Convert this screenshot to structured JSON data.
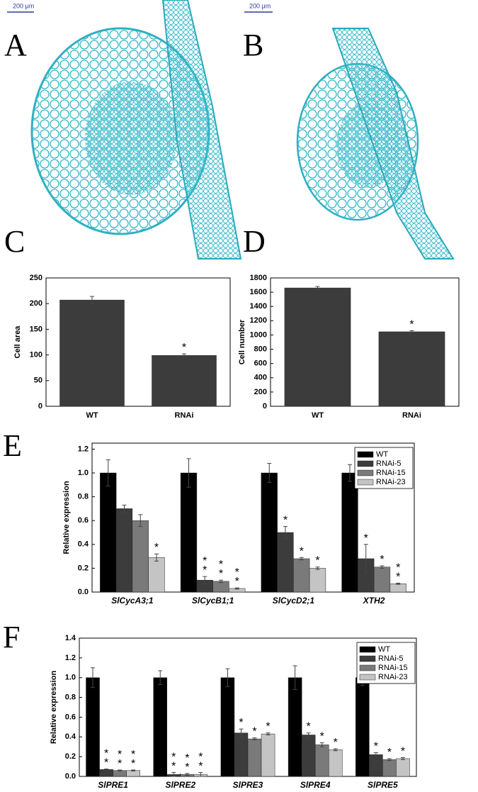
{
  "image_panels": [
    {
      "label": "A",
      "scale_bar": "200 μm"
    },
    {
      "label": "B",
      "scale_bar": "200 μm"
    }
  ],
  "chart_data": [
    {
      "type": "bar",
      "panel_label": "C",
      "y_label": "Cell area",
      "categories": [
        "WT",
        "RNAi"
      ],
      "values": [
        207,
        99
      ],
      "errors": [
        7,
        3
      ],
      "significance": [
        null,
        "*"
      ],
      "color": "#3c3c3c",
      "ylim": [
        0,
        250
      ],
      "yticks": [
        0,
        50,
        100,
        150,
        200,
        250
      ]
    },
    {
      "type": "bar",
      "panel_label": "D",
      "y_label": "Cell number",
      "categories": [
        "WT",
        "RNAi"
      ],
      "values": [
        1660,
        1045
      ],
      "errors": [
        20,
        15
      ],
      "significance": [
        null,
        "*"
      ],
      "color": "#3c3c3c",
      "ylim": [
        0,
        1800
      ],
      "yticks": [
        0,
        200,
        400,
        600,
        800,
        1000,
        1200,
        1400,
        1600,
        1800
      ]
    },
    {
      "type": "bar",
      "panel_label": "E",
      "y_label": "Relative expression",
      "categories": [
        "SlCycA3;1",
        "SlCycB1;1",
        "SlCycD2;1",
        "XTH2"
      ],
      "series": [
        {
          "name": "WT",
          "color": "#000000",
          "values": [
            1,
            1,
            1,
            1
          ],
          "errors": [
            0.11,
            0.12,
            0.08,
            0.07
          ],
          "significance": [
            null,
            null,
            null,
            null
          ]
        },
        {
          "name": "RNAi-5",
          "color": "#3c3c3c",
          "values": [
            0.7,
            0.1,
            0.5,
            0.28
          ],
          "errors": [
            0.03,
            0.03,
            0.05,
            0.12
          ],
          "significance": [
            null,
            "**",
            "*",
            "*"
          ]
        },
        {
          "name": "RNAi-15",
          "color": "#7a7a7a",
          "values": [
            0.6,
            0.09,
            0.28,
            0.21
          ],
          "errors": [
            0.05,
            0.01,
            0.01,
            0.01
          ],
          "significance": [
            null,
            "**",
            "*",
            "*"
          ]
        },
        {
          "name": "RNAi-23",
          "color": "#c4c4c4",
          "values": [
            0.29,
            0.03,
            0.2,
            0.07
          ],
          "errors": [
            0.03,
            0.005,
            0.01,
            0.005
          ],
          "significance": [
            "*",
            "**",
            "*",
            "**"
          ]
        }
      ],
      "ylim": [
        0,
        1.25
      ],
      "yticks": [
        {
          "value": 0,
          "label": "0.0"
        },
        0.2,
        0.4,
        0.6,
        0.8,
        {
          "value": 1,
          "label": "1.0"
        },
        1.2
      ],
      "legend": "upper right"
    },
    {
      "type": "bar",
      "panel_label": "F",
      "y_label": "Relative expression",
      "categories": [
        "SlPRE1",
        "SlPRE2",
        "SlPRE3",
        "SlPRE4",
        "SlPRE5"
      ],
      "series": [
        {
          "name": "WT",
          "color": "#000000",
          "values": [
            1,
            1,
            1,
            1,
            1
          ],
          "errors": [
            0.1,
            0.07,
            0.09,
            0.12,
            0.08
          ],
          "significance": [
            null,
            null,
            null,
            null,
            null
          ]
        },
        {
          "name": "RNAi-5",
          "color": "#3c3c3c",
          "values": [
            0.07,
            0.02,
            0.44,
            0.42,
            0.22
          ],
          "errors": [
            0.005,
            0.02,
            0.04,
            0.02,
            0.02
          ],
          "significance": [
            "**",
            "**",
            "*",
            "*",
            "*"
          ]
        },
        {
          "name": "RNAi-15",
          "color": "#7a7a7a",
          "values": [
            0.06,
            0.02,
            0.38,
            0.32,
            0.17
          ],
          "errors": [
            0.005,
            0.01,
            0.01,
            0.02,
            0.01
          ],
          "significance": [
            "**",
            "**",
            "*",
            "*",
            "*"
          ]
        },
        {
          "name": "RNAi-23",
          "color": "#c4c4c4",
          "values": [
            0.06,
            0.02,
            0.43,
            0.27,
            0.18
          ],
          "errors": [
            0.005,
            0.02,
            0.01,
            0.01,
            0.01
          ],
          "significance": [
            "**",
            "**",
            "*",
            "*",
            "*"
          ]
        }
      ],
      "ylim": [
        0,
        1.4
      ],
      "yticks": [
        {
          "value": 0,
          "label": "0.0"
        },
        0.2,
        0.4,
        0.6,
        0.8,
        {
          "value": 1,
          "label": "1.0"
        },
        1.2,
        1.4
      ],
      "legend": "upper right"
    }
  ]
}
